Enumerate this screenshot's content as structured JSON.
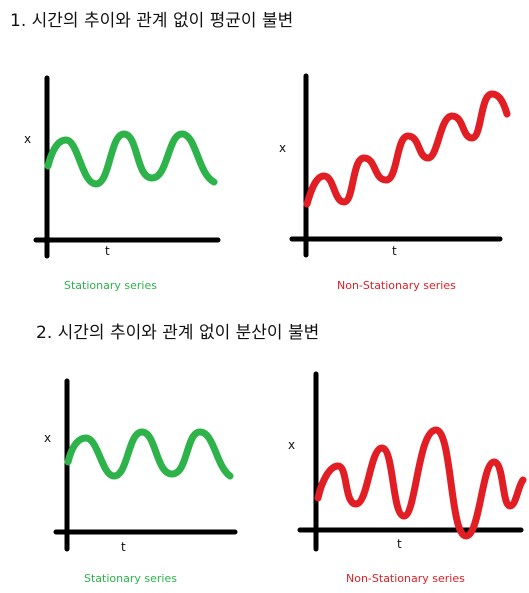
{
  "sections": [
    {
      "heading": "1. 시간의 추이와 관계 없이 평균이 불변",
      "left": {
        "ylabel": "x",
        "xlabel": "t",
        "caption": "Stationary series"
      },
      "right": {
        "ylabel": "x",
        "xlabel": "t",
        "caption": "Non-Stationary series"
      }
    },
    {
      "heading": "2. 시간의 추이와 관계 없이 분산이 불변",
      "left": {
        "ylabel": "x",
        "xlabel": "t",
        "caption": "Stationary series"
      },
      "right": {
        "ylabel": "x",
        "xlabel": "t",
        "caption": "Non-Stationary series"
      }
    }
  ],
  "colors": {
    "stationary": "#2db34a",
    "nonstationary": "#e01e24",
    "axis": "#000000"
  }
}
